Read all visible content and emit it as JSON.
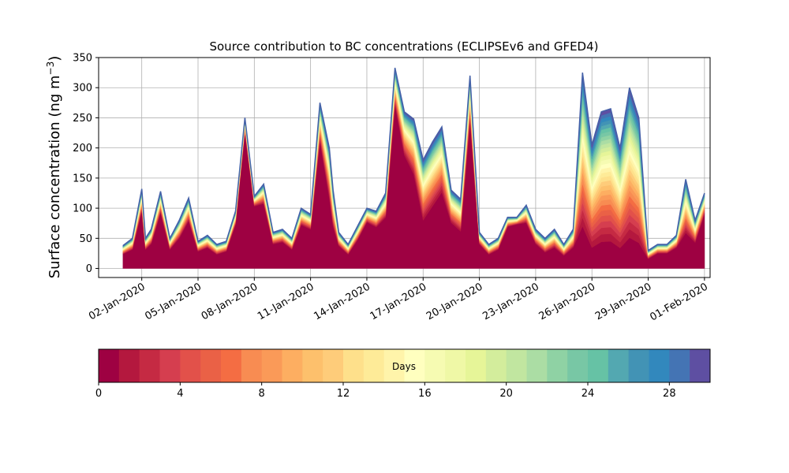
{
  "chart_data": {
    "type": "area",
    "title": "Source contribution to BC concentrations (ECLIPSEv6 and GFED4)",
    "ylabel_main": "Surface concentration (ng m",
    "ylabel_sup": "−3",
    "ylabel_close": ")",
    "ylim": [
      -15,
      350
    ],
    "yticks": [
      0,
      50,
      100,
      150,
      200,
      250,
      300,
      350
    ],
    "xlim": [
      -1.3,
      31.3
    ],
    "xtick_positions": [
      1,
      4,
      7,
      10,
      13,
      16,
      19,
      22,
      25,
      28,
      31
    ],
    "xtick_labels": [
      "02-Jan-2020",
      "05-Jan-2020",
      "08-Jan-2020",
      "11-Jan-2020",
      "14-Jan-2020",
      "17-Jan-2020",
      "20-Jan-2020",
      "23-Jan-2020",
      "26-Jan-2020",
      "29-Jan-2020",
      "01-Feb-2020"
    ],
    "grid": true,
    "stacked_layers": 30,
    "x_days": [
      0,
      0.5,
      1,
      1.2,
      1.5,
      2,
      2.5,
      3,
      3.5,
      4,
      4.5,
      5,
      5.5,
      6,
      6.5,
      7,
      7.5,
      8,
      8.5,
      9,
      9.5,
      10,
      10.5,
      11,
      11.2,
      11.5,
      12,
      12.5,
      13,
      13.5,
      14,
      14.5,
      15,
      15.5,
      16,
      16.5,
      17,
      17.5,
      18,
      18.5,
      19,
      19.5,
      20,
      20.5,
      21,
      21.5,
      22,
      22.5,
      23,
      23.5,
      24,
      24.5,
      25,
      25.5,
      26,
      26.5,
      27,
      27.5,
      28,
      28.5,
      29,
      29.5,
      30,
      30.5,
      31
    ],
    "total": [
      38,
      50,
      132,
      50,
      65,
      128,
      50,
      80,
      117,
      45,
      55,
      40,
      45,
      95,
      250,
      120,
      140,
      60,
      65,
      50,
      100,
      90,
      275,
      200,
      130,
      60,
      40,
      70,
      100,
      95,
      125,
      333,
      260,
      248,
      180,
      210,
      235,
      130,
      115,
      320,
      60,
      40,
      50,
      85,
      85,
      105,
      65,
      50,
      65,
      40,
      65,
      325,
      205,
      260,
      265,
      200,
      300,
      250,
      30,
      40,
      40,
      55,
      148,
      80,
      125
    ],
    "base_fraction": [
      0.6,
      0.6,
      0.7,
      0.6,
      0.6,
      0.7,
      0.6,
      0.6,
      0.65,
      0.6,
      0.6,
      0.55,
      0.6,
      0.75,
      0.9,
      0.85,
      0.75,
      0.65,
      0.65,
      0.6,
      0.7,
      0.7,
      0.75,
      0.55,
      0.5,
      0.6,
      0.55,
      0.65,
      0.75,
      0.7,
      0.65,
      0.8,
      0.7,
      0.6,
      0.4,
      0.45,
      0.5,
      0.55,
      0.5,
      0.75,
      0.65,
      0.55,
      0.6,
      0.8,
      0.85,
      0.7,
      0.6,
      0.5,
      0.5,
      0.5,
      0.5,
      0.15,
      0.1,
      0.1,
      0.1,
      0.1,
      0.1,
      0.1,
      0.5,
      0.6,
      0.6,
      0.6,
      0.35,
      0.5,
      0.7
    ],
    "colorbar": {
      "label": "Days",
      "min": 0,
      "max": 30,
      "ticks": [
        0,
        4,
        8,
        12,
        16,
        20,
        24,
        28
      ],
      "colors": [
        "#9e0142",
        "#b4183e",
        "#c52a43",
        "#d53e4f",
        "#e2514a",
        "#ea6146",
        "#f46d43",
        "#f88c52",
        "#fa9a58",
        "#fdae61",
        "#fdc06c",
        "#fecc7a",
        "#fee08b",
        "#feeb98",
        "#fff4aa",
        "#ffffbf",
        "#f6fbb2",
        "#eff8a6",
        "#e6f598",
        "#d3ed9c",
        "#c1e6a0",
        "#abdda4",
        "#8fd2a4",
        "#78c7a5",
        "#66c2a5",
        "#53a8b1",
        "#4293b5",
        "#3288bd",
        "#4474b4",
        "#5e4fa2"
      ]
    }
  }
}
